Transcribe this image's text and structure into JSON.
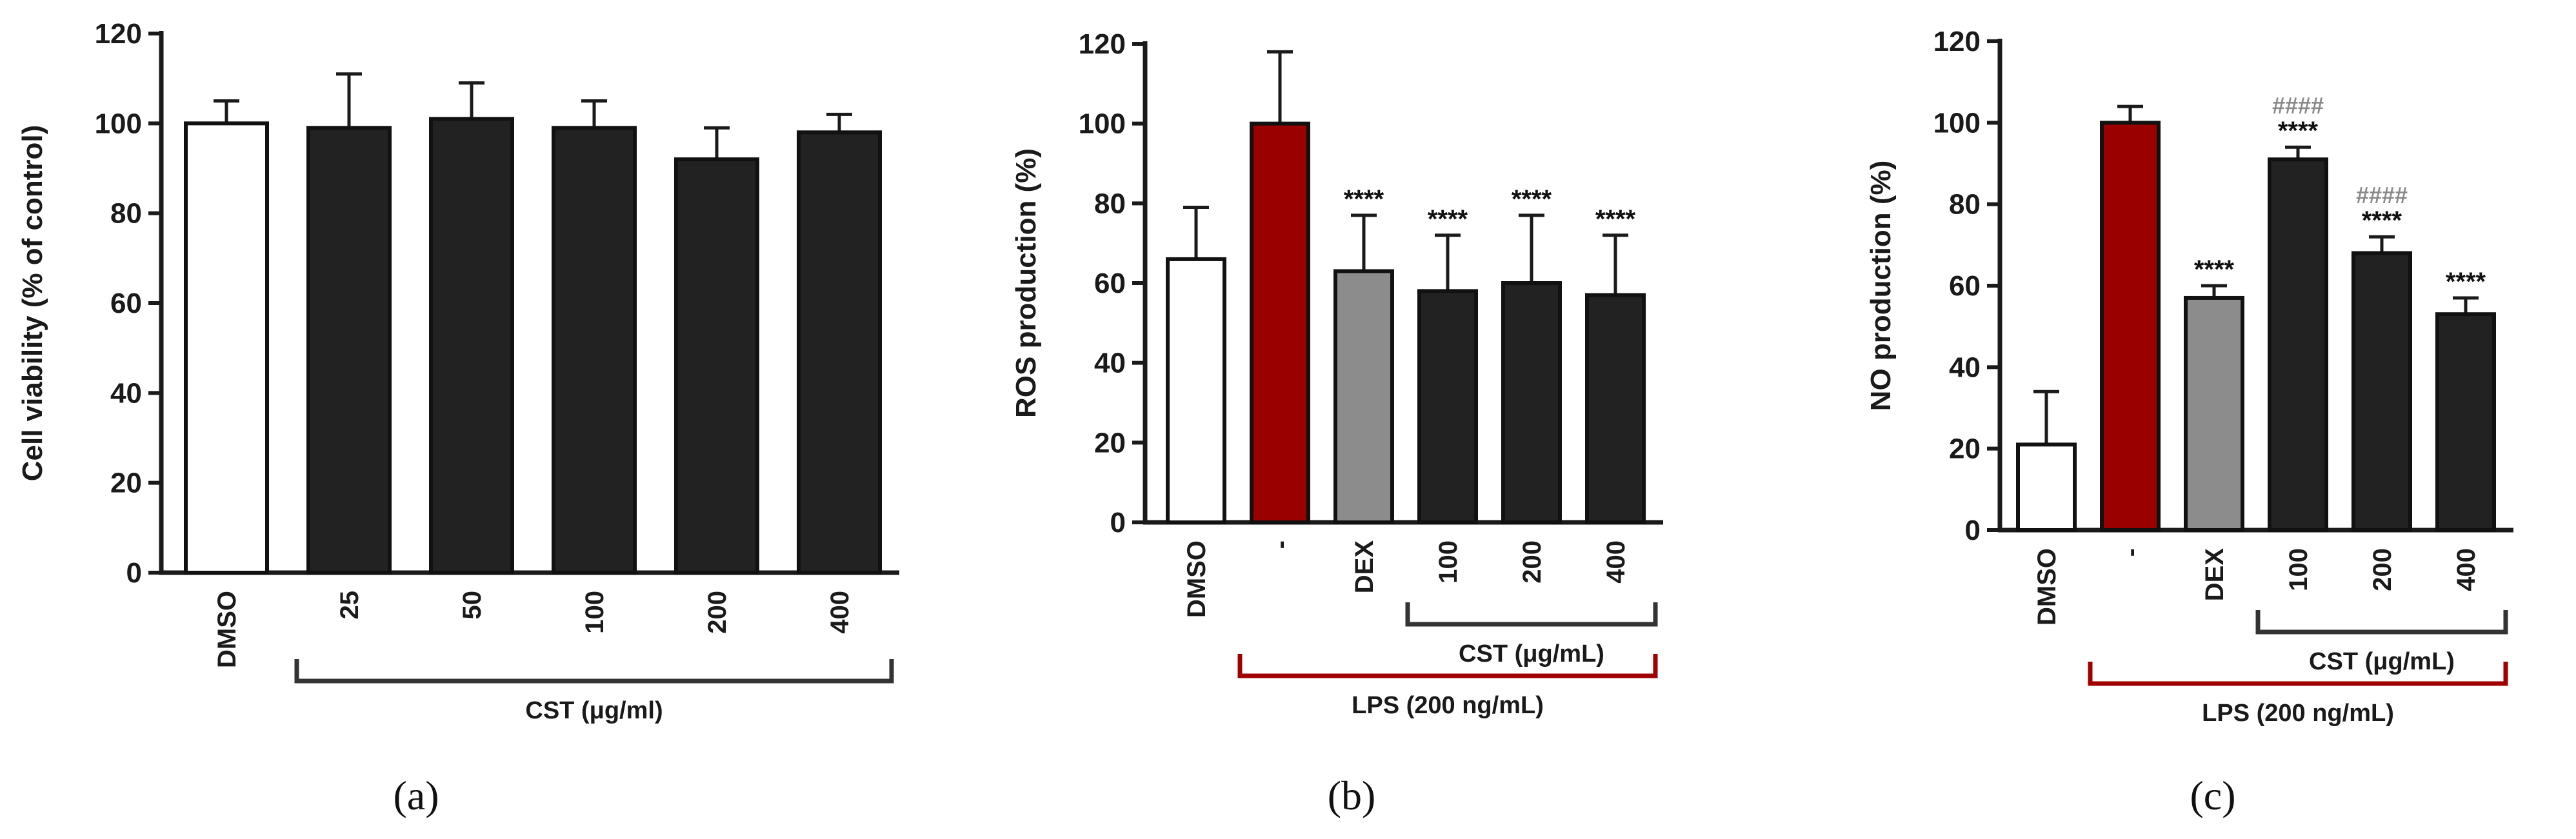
{
  "chart_data": [
    {
      "type": "bar",
      "panel_label": "(a)",
      "ylabel": "Cell viability (% of control)",
      "ylim": [
        0,
        120
      ],
      "yticks": [
        "0",
        "20",
        "40",
        "60",
        "80",
        "100",
        "120"
      ],
      "categories": [
        "DMSO",
        "25",
        "50",
        "100",
        "200",
        "400"
      ],
      "values": [
        100,
        99,
        101,
        99,
        92,
        98
      ],
      "errors": [
        5,
        12,
        8,
        6,
        7,
        4
      ],
      "fills": [
        "#ffffff",
        "#222222",
        "#222222",
        "#222222",
        "#222222",
        "#222222"
      ],
      "significance": [],
      "groups": [
        {
          "label": "CST (μg/ml)",
          "start": 1,
          "end": 5,
          "color": "#333333"
        }
      ]
    },
    {
      "type": "bar",
      "panel_label": "(b)",
      "ylabel": "ROS production (%)",
      "ylim": [
        0,
        120
      ],
      "yticks": [
        "0",
        "20",
        "40",
        "60",
        "80",
        "100",
        "120"
      ],
      "categories": [
        "DMSO",
        "-",
        "DEX",
        "100",
        "200",
        "400"
      ],
      "values": [
        66,
        100,
        63,
        58,
        60,
        57
      ],
      "errors": [
        13,
        18,
        14,
        14,
        17,
        15
      ],
      "fills": [
        "#ffffff",
        "#9b0000",
        "#8c8c8c",
        "#222222",
        "#222222",
        "#222222"
      ],
      "significance": [
        {
          "index": 2,
          "label": "****",
          "color": "#111111"
        },
        {
          "index": 3,
          "label": "****",
          "color": "#111111"
        },
        {
          "index": 4,
          "label": "****",
          "color": "#111111"
        },
        {
          "index": 5,
          "label": "****",
          "color": "#111111"
        }
      ],
      "groups": [
        {
          "label": "CST (μg/mL)",
          "start": 3,
          "end": 5,
          "color": "#333333"
        },
        {
          "label": "LPS (200 ng/mL)",
          "start": 1,
          "end": 5,
          "color": "#a00000"
        }
      ]
    },
    {
      "type": "bar",
      "panel_label": "(c)",
      "ylabel": "NO production (%)",
      "ylim": [
        0,
        120
      ],
      "yticks": [
        "0",
        "20",
        "40",
        "60",
        "80",
        "100",
        "120"
      ],
      "categories": [
        "DMSO",
        "-",
        "DEX",
        "100",
        "200",
        "400"
      ],
      "values": [
        21,
        100,
        57,
        91,
        68,
        53
      ],
      "errors": [
        13,
        4,
        3,
        3,
        4,
        4
      ],
      "fills": [
        "#ffffff",
        "#9b0000",
        "#8c8c8c",
        "#222222",
        "#222222",
        "#222222"
      ],
      "significance": [
        {
          "index": 2,
          "label": "****",
          "color": "#111111"
        },
        {
          "index": 3,
          "label": "****",
          "color": "#111111"
        },
        {
          "index": 3,
          "label": "####",
          "color": "#8a8a8a"
        },
        {
          "index": 4,
          "label": "****",
          "color": "#111111"
        },
        {
          "index": 4,
          "label": "####",
          "color": "#8a8a8a"
        },
        {
          "index": 5,
          "label": "****",
          "color": "#111111"
        }
      ],
      "groups": [
        {
          "label": "CST (μg/mL)",
          "start": 3,
          "end": 5,
          "color": "#333333"
        },
        {
          "label": "LPS (200 ng/mL)",
          "start": 1,
          "end": 5,
          "color": "#a00000"
        }
      ]
    }
  ]
}
